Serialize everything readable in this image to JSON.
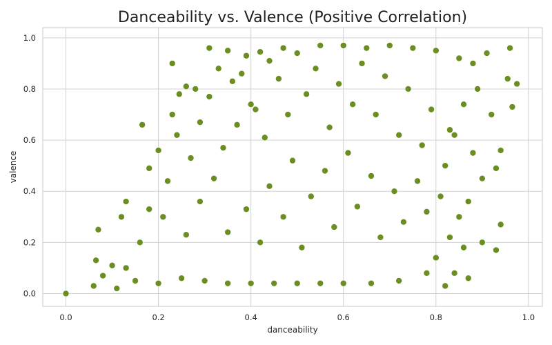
{
  "chart_data": {
    "type": "scatter",
    "title": "Danceability vs. Valence (Positive Correlation)",
    "xlabel": "danceability",
    "ylabel": "valence",
    "xlim": [
      -0.05,
      1.03
    ],
    "ylim": [
      -0.05,
      1.04
    ],
    "xticks": [
      0.0,
      0.2,
      0.4,
      0.6,
      0.8,
      1.0
    ],
    "yticks": [
      0.0,
      0.2,
      0.4,
      0.6,
      0.8,
      1.0
    ],
    "xtick_labels": [
      "0.0",
      "0.2",
      "0.4",
      "0.6",
      "0.8",
      "1.0"
    ],
    "ytick_labels": [
      "0.0",
      "0.2",
      "0.4",
      "0.6",
      "0.8",
      "1.0"
    ],
    "grid": true,
    "marker_color": "#6b8e23",
    "marker_edge_color": "#ffffff",
    "points": [
      [
        0.0,
        0.0
      ],
      [
        0.07,
        0.25
      ],
      [
        0.065,
        0.13
      ],
      [
        0.165,
        0.66
      ],
      [
        0.23,
        0.9
      ],
      [
        0.31,
        0.96
      ],
      [
        0.35,
        0.95
      ],
      [
        0.39,
        0.93
      ],
      [
        0.42,
        0.945
      ],
      [
        0.26,
        0.81
      ],
      [
        0.28,
        0.8
      ],
      [
        0.245,
        0.78
      ],
      [
        0.23,
        0.7
      ],
      [
        0.13,
        0.36
      ],
      [
        0.12,
        0.3
      ],
      [
        0.96,
        0.96
      ],
      [
        0.975,
        0.82
      ],
      [
        0.965,
        0.73
      ],
      [
        0.94,
        0.56
      ],
      [
        0.93,
        0.49
      ],
      [
        0.87,
        0.06
      ],
      [
        0.82,
        0.03
      ],
      [
        0.84,
        0.08
      ],
      [
        0.94,
        0.27
      ],
      [
        0.93,
        0.17
      ],
      [
        0.9,
        0.2
      ],
      [
        0.92,
        0.7
      ],
      [
        0.955,
        0.84
      ],
      [
        0.18,
        0.49
      ],
      [
        0.2,
        0.56
      ],
      [
        0.06,
        0.03
      ],
      [
        0.08,
        0.07
      ],
      [
        0.1,
        0.11
      ],
      [
        0.11,
        0.02
      ],
      [
        0.13,
        0.1
      ],
      [
        0.16,
        0.2
      ],
      [
        0.18,
        0.33
      ],
      [
        0.21,
        0.3
      ],
      [
        0.22,
        0.44
      ],
      [
        0.24,
        0.62
      ],
      [
        0.27,
        0.53
      ],
      [
        0.29,
        0.67
      ],
      [
        0.31,
        0.77
      ],
      [
        0.33,
        0.88
      ],
      [
        0.36,
        0.83
      ],
      [
        0.38,
        0.86
      ],
      [
        0.4,
        0.74
      ],
      [
        0.44,
        0.91
      ],
      [
        0.47,
        0.96
      ],
      [
        0.5,
        0.94
      ],
      [
        0.55,
        0.97
      ],
      [
        0.6,
        0.97
      ],
      [
        0.65,
        0.96
      ],
      [
        0.7,
        0.97
      ],
      [
        0.75,
        0.96
      ],
      [
        0.8,
        0.95
      ],
      [
        0.85,
        0.92
      ],
      [
        0.88,
        0.9
      ],
      [
        0.91,
        0.94
      ],
      [
        0.89,
        0.8
      ],
      [
        0.86,
        0.74
      ],
      [
        0.83,
        0.64
      ],
      [
        0.88,
        0.55
      ],
      [
        0.9,
        0.45
      ],
      [
        0.87,
        0.36
      ],
      [
        0.85,
        0.3
      ],
      [
        0.83,
        0.22
      ],
      [
        0.8,
        0.14
      ],
      [
        0.78,
        0.08
      ],
      [
        0.72,
        0.05
      ],
      [
        0.66,
        0.04
      ],
      [
        0.6,
        0.04
      ],
      [
        0.55,
        0.04
      ],
      [
        0.5,
        0.04
      ],
      [
        0.45,
        0.04
      ],
      [
        0.4,
        0.04
      ],
      [
        0.35,
        0.04
      ],
      [
        0.3,
        0.05
      ],
      [
        0.25,
        0.06
      ],
      [
        0.2,
        0.04
      ],
      [
        0.15,
        0.05
      ],
      [
        0.26,
        0.23
      ],
      [
        0.29,
        0.36
      ],
      [
        0.32,
        0.45
      ],
      [
        0.34,
        0.57
      ],
      [
        0.37,
        0.66
      ],
      [
        0.41,
        0.72
      ],
      [
        0.43,
        0.61
      ],
      [
        0.46,
        0.84
      ],
      [
        0.48,
        0.7
      ],
      [
        0.52,
        0.78
      ],
      [
        0.54,
        0.88
      ],
      [
        0.57,
        0.65
      ],
      [
        0.59,
        0.82
      ],
      [
        0.62,
        0.74
      ],
      [
        0.64,
        0.9
      ],
      [
        0.67,
        0.7
      ],
      [
        0.69,
        0.85
      ],
      [
        0.72,
        0.62
      ],
      [
        0.74,
        0.8
      ],
      [
        0.77,
        0.58
      ],
      [
        0.79,
        0.72
      ],
      [
        0.82,
        0.5
      ],
      [
        0.84,
        0.62
      ],
      [
        0.35,
        0.24
      ],
      [
        0.39,
        0.33
      ],
      [
        0.42,
        0.2
      ],
      [
        0.44,
        0.42
      ],
      [
        0.47,
        0.3
      ],
      [
        0.49,
        0.52
      ],
      [
        0.51,
        0.18
      ],
      [
        0.53,
        0.38
      ],
      [
        0.56,
        0.48
      ],
      [
        0.58,
        0.26
      ],
      [
        0.61,
        0.55
      ],
      [
        0.63,
        0.34
      ],
      [
        0.66,
        0.46
      ],
      [
        0.68,
        0.22
      ],
      [
        0.71,
        0.4
      ],
      [
        0.73,
        0.28
      ],
      [
        0.76,
        0.44
      ],
      [
        0.78,
        0.32
      ],
      [
        0.81,
        0.38
      ],
      [
        0.86,
        0.18
      ]
    ]
  }
}
